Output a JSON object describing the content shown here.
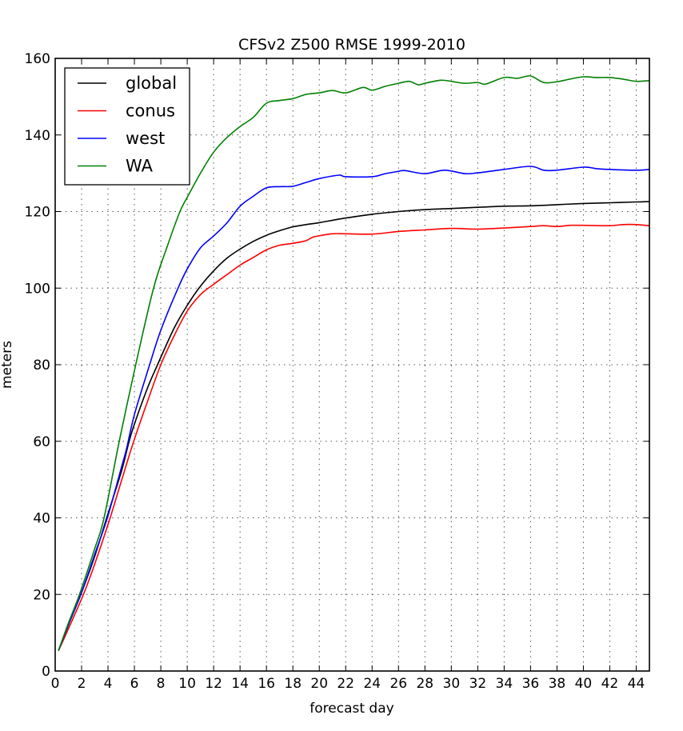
{
  "chart_data": {
    "type": "line",
    "title": "CFSv2 Z500 RMSE 1999-2010",
    "xlabel": "forecast day",
    "ylabel": "meters",
    "xlim": [
      0,
      45
    ],
    "ylim": [
      0,
      160
    ],
    "xticks": [
      0,
      2,
      4,
      6,
      8,
      10,
      12,
      14,
      16,
      18,
      20,
      22,
      24,
      26,
      28,
      30,
      32,
      34,
      36,
      38,
      40,
      42,
      44
    ],
    "xtick_labels": [
      "0",
      "2",
      "4",
      "6",
      "8",
      "10",
      "12",
      "14",
      "16",
      "18",
      "20",
      "22",
      "24",
      "26",
      "28",
      "30",
      "32",
      "34",
      "36",
      "38",
      "40",
      "42",
      "44"
    ],
    "yticks": [
      0,
      20,
      40,
      60,
      80,
      100,
      120,
      140,
      160
    ],
    "ytick_labels": [
      "0",
      "20",
      "40",
      "60",
      "80",
      "100",
      "120",
      "140",
      "160"
    ],
    "grid": true,
    "legend_position": "top-left",
    "series": [
      {
        "name": "global",
        "color": "#000000",
        "x": [
          0.25,
          1,
          2,
          3,
          3.9,
          5,
          5.6,
          6,
          7,
          7.75,
          9,
          10,
          11,
          12,
          13,
          14,
          15,
          16,
          17,
          18,
          19,
          20,
          22,
          24,
          26,
          28,
          30,
          32,
          34,
          36,
          38,
          40,
          42,
          44,
          45
        ],
        "y": [
          5.3,
          12,
          20.5,
          30,
          40,
          52,
          60,
          64.5,
          74,
          80,
          89.5,
          95.5,
          100.5,
          104.5,
          107.8,
          110.2,
          112.2,
          113.8,
          115,
          116,
          116.6,
          117.1,
          118.3,
          119.3,
          120,
          120.5,
          120.8,
          121.1,
          121.4,
          121.5,
          121.8,
          122.1,
          122.3,
          122.5,
          122.6
        ]
      },
      {
        "name": "conus",
        "color": "#ff0000",
        "x": [
          0.25,
          1,
          2.14,
          3,
          4.16,
          5,
          5.95,
          7,
          8,
          9,
          10,
          11,
          12,
          13,
          14,
          15,
          16,
          17,
          18,
          19,
          19.5,
          20.2,
          21,
          22,
          24,
          26,
          28,
          30,
          32,
          34,
          36,
          37,
          38,
          39,
          40,
          42,
          43,
          44,
          45
        ],
        "y": [
          5.3,
          11,
          20,
          28,
          40,
          49.5,
          60,
          70.5,
          80,
          87.5,
          94,
          98.3,
          101,
          103.5,
          106,
          108,
          110,
          111.2,
          111.7,
          112.4,
          113.3,
          113.8,
          114.2,
          114.2,
          114.1,
          114.8,
          115.2,
          115.6,
          115.4,
          115.7,
          116.1,
          116.3,
          116.1,
          116.4,
          116.4,
          116.3,
          116.6,
          116.6,
          116.3
        ]
      },
      {
        "name": "west",
        "color": "#0000ff",
        "x": [
          0.25,
          1,
          2,
          3,
          3.95,
          5,
          5.4,
          6,
          7.15,
          8,
          9.3,
          10,
          11,
          12,
          13,
          14,
          15,
          16,
          17,
          18,
          19,
          20,
          21.5,
          22,
          24,
          25,
          26,
          26.5,
          28,
          29.5,
          31,
          32,
          34,
          36,
          37,
          38,
          40,
          41,
          42,
          44,
          45
        ],
        "y": [
          5.3,
          12,
          20.5,
          30.5,
          40,
          53,
          58,
          67,
          80,
          89,
          100,
          105,
          110.5,
          113.6,
          117,
          121.4,
          124,
          126.2,
          126.5,
          126.6,
          127.6,
          128.6,
          129.5,
          129.1,
          129.1,
          129.9,
          130.5,
          130.7,
          129.9,
          130.8,
          129.9,
          130.1,
          131,
          131.8,
          130.8,
          130.8,
          131.6,
          131.2,
          131,
          130.8,
          131
        ]
      },
      {
        "name": "WA",
        "color": "#008000",
        "x": [
          0.25,
          1,
          1.84,
          3,
          3.7,
          4.85,
          6.1,
          7.45,
          8.5,
          9.45,
          10,
          11,
          12,
          13,
          14,
          15,
          16,
          17,
          18,
          19,
          20,
          21,
          22,
          23.3,
          24,
          25,
          26,
          26.8,
          27.5,
          28,
          29.2,
          30,
          31,
          32,
          32.6,
          34,
          35,
          36,
          37,
          38,
          39,
          40,
          41,
          42,
          43,
          44,
          45
        ],
        "y": [
          5.3,
          12.5,
          20,
          32,
          40,
          60,
          80,
          100,
          111,
          120,
          123.7,
          130,
          135.5,
          139.3,
          142.2,
          144.6,
          148.3,
          149,
          149.5,
          150.6,
          151,
          151.6,
          151,
          152.4,
          151.7,
          152.7,
          153.5,
          154,
          153.1,
          153.5,
          154.3,
          154,
          153.5,
          153.7,
          153.3,
          155,
          154.8,
          155.4,
          153.7,
          153.9,
          154.6,
          155.2,
          155,
          155,
          154.6,
          154,
          154.2
        ]
      }
    ]
  }
}
